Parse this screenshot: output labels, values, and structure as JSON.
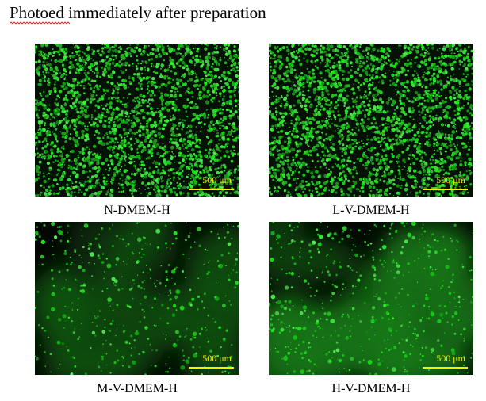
{
  "title": "Photoed immediately after preparation",
  "scale_label": "500 μm",
  "colors": {
    "fluorescence": "#27d627",
    "scale_bar": "#f3f200",
    "spellcheck_underline": "#e0201c"
  },
  "panels": [
    {
      "caption": "N-DMEM-H",
      "pattern": "dense-confluent-green"
    },
    {
      "caption": "L-V-DMEM-H",
      "pattern": "dense-confluent-green"
    },
    {
      "caption": "M-V-DMEM-H",
      "pattern": "sparse-green-spots-on-dark-haze"
    },
    {
      "caption": "H-V-DMEM-H",
      "pattern": "sparse-green-spots-on-green-haze"
    }
  ]
}
